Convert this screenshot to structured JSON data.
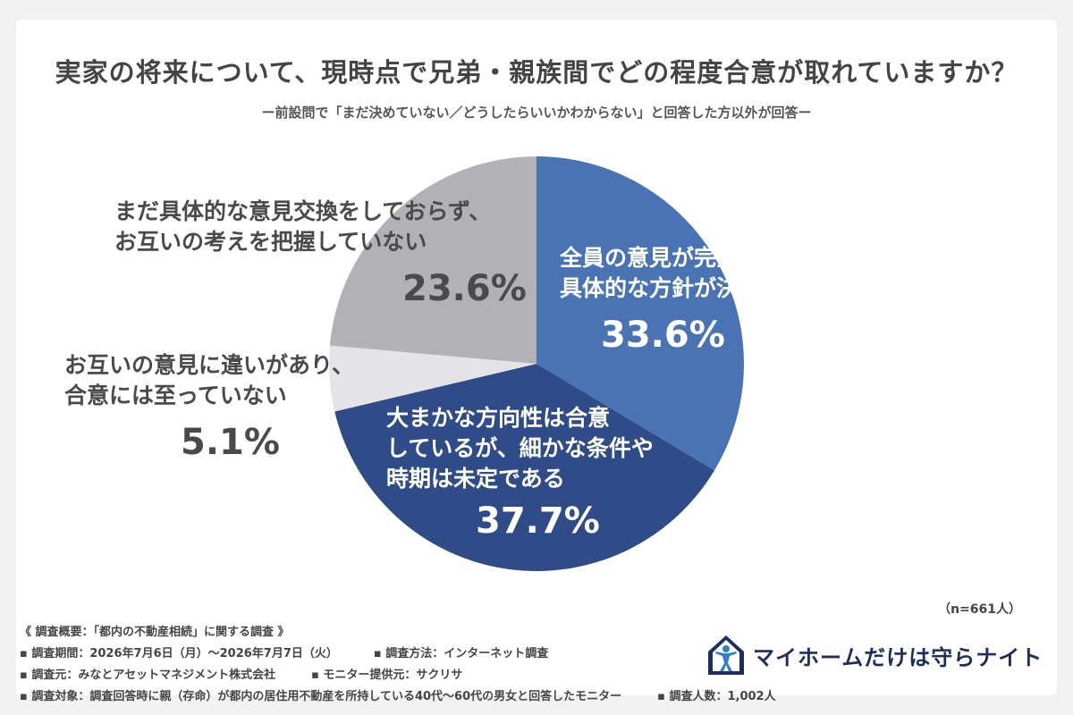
{
  "title": "実家の将来について、現時点で兄弟・親族間でどの程度合意が取れていますか？",
  "subtitle": "ー前設問で「まだ決めていない／どうしたらいいかわからない」と回答した方以外が回答ー",
  "sample_note": "（n=661人）",
  "colors": {
    "slice1": "#4a73b3",
    "slice2": "#2f4b88",
    "slice3": "#e4e4e6",
    "slice4": "#b2b2b6"
  },
  "chart_data": {
    "type": "pie",
    "slices": [
      {
        "label_lines": [
          "全員の意見が完全に一致し、",
          "具体的な方針が決まっている"
        ],
        "value": 33.6,
        "value_label": "33.6%"
      },
      {
        "label_lines": [
          "大まかな方向性は合意",
          "しているが、細かな条件や",
          "時期は未定である"
        ],
        "value": 37.7,
        "value_label": "37.7%"
      },
      {
        "label_lines": [
          "お互いの意見に違いがあり、",
          "合意には至っていない"
        ],
        "value": 5.1,
        "value_label": "5.1%"
      },
      {
        "label_lines": [
          "まだ具体的な意見交換をしておらず、",
          "お互いの考えを把握していない"
        ],
        "value": 23.6,
        "value_label": "23.6%"
      }
    ]
  },
  "footer": {
    "overview": "《 調査概要：「都内の不動産相続」に関する調査 》",
    "period": "▪ 調査期間：2026年7月6日（月）〜2026年7月7日（火）",
    "method": "▪ 調査方法：インターネット調査",
    "organizer": "▪ 調査元：みなとアセットマネジメント株式会社",
    "provider": "▪ モニター提供元：サクリサ",
    "target": "▪ 調査対象：調査回答時に親（存命）が都内の居住用不動産を所持している40代〜60代の男女と回答したモニター",
    "count": "▪ 調査人数：1,002人"
  },
  "logo": {
    "text": "マイホームだけは守らナイト",
    "icon": "house-person-icon"
  }
}
